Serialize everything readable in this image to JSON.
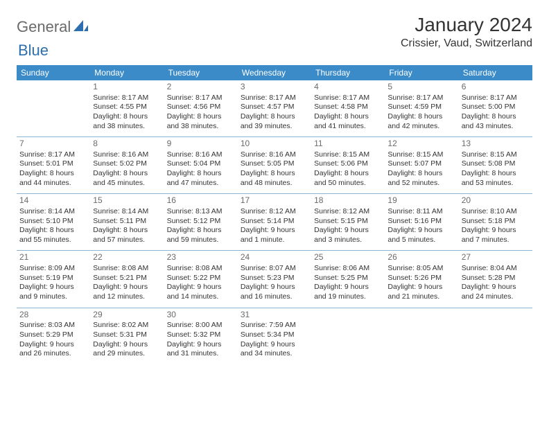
{
  "logo": {
    "word1": "General",
    "word2": "Blue"
  },
  "title": "January 2024",
  "subtitle": "Crissier, Vaud, Switzerland",
  "colors": {
    "header_bg": "#3b8bc9",
    "header_fg": "#ffffff",
    "row_border": "#8ab3d6",
    "text": "#333333",
    "logo_gray": "#6a6a6a",
    "logo_blue": "#2c6fb0"
  },
  "day_headers": [
    "Sunday",
    "Monday",
    "Tuesday",
    "Wednesday",
    "Thursday",
    "Friday",
    "Saturday"
  ],
  "weeks": [
    [
      null,
      {
        "n": "1",
        "sr": "8:17 AM",
        "ss": "4:55 PM",
        "dl": "8 hours and 38 minutes."
      },
      {
        "n": "2",
        "sr": "8:17 AM",
        "ss": "4:56 PM",
        "dl": "8 hours and 38 minutes."
      },
      {
        "n": "3",
        "sr": "8:17 AM",
        "ss": "4:57 PM",
        "dl": "8 hours and 39 minutes."
      },
      {
        "n": "4",
        "sr": "8:17 AM",
        "ss": "4:58 PM",
        "dl": "8 hours and 41 minutes."
      },
      {
        "n": "5",
        "sr": "8:17 AM",
        "ss": "4:59 PM",
        "dl": "8 hours and 42 minutes."
      },
      {
        "n": "6",
        "sr": "8:17 AM",
        "ss": "5:00 PM",
        "dl": "8 hours and 43 minutes."
      }
    ],
    [
      {
        "n": "7",
        "sr": "8:17 AM",
        "ss": "5:01 PM",
        "dl": "8 hours and 44 minutes."
      },
      {
        "n": "8",
        "sr": "8:16 AM",
        "ss": "5:02 PM",
        "dl": "8 hours and 45 minutes."
      },
      {
        "n": "9",
        "sr": "8:16 AM",
        "ss": "5:04 PM",
        "dl": "8 hours and 47 minutes."
      },
      {
        "n": "10",
        "sr": "8:16 AM",
        "ss": "5:05 PM",
        "dl": "8 hours and 48 minutes."
      },
      {
        "n": "11",
        "sr": "8:15 AM",
        "ss": "5:06 PM",
        "dl": "8 hours and 50 minutes."
      },
      {
        "n": "12",
        "sr": "8:15 AM",
        "ss": "5:07 PM",
        "dl": "8 hours and 52 minutes."
      },
      {
        "n": "13",
        "sr": "8:15 AM",
        "ss": "5:08 PM",
        "dl": "8 hours and 53 minutes."
      }
    ],
    [
      {
        "n": "14",
        "sr": "8:14 AM",
        "ss": "5:10 PM",
        "dl": "8 hours and 55 minutes."
      },
      {
        "n": "15",
        "sr": "8:14 AM",
        "ss": "5:11 PM",
        "dl": "8 hours and 57 minutes."
      },
      {
        "n": "16",
        "sr": "8:13 AM",
        "ss": "5:12 PM",
        "dl": "8 hours and 59 minutes."
      },
      {
        "n": "17",
        "sr": "8:12 AM",
        "ss": "5:14 PM",
        "dl": "9 hours and 1 minute."
      },
      {
        "n": "18",
        "sr": "8:12 AM",
        "ss": "5:15 PM",
        "dl": "9 hours and 3 minutes."
      },
      {
        "n": "19",
        "sr": "8:11 AM",
        "ss": "5:16 PM",
        "dl": "9 hours and 5 minutes."
      },
      {
        "n": "20",
        "sr": "8:10 AM",
        "ss": "5:18 PM",
        "dl": "9 hours and 7 minutes."
      }
    ],
    [
      {
        "n": "21",
        "sr": "8:09 AM",
        "ss": "5:19 PM",
        "dl": "9 hours and 9 minutes."
      },
      {
        "n": "22",
        "sr": "8:08 AM",
        "ss": "5:21 PM",
        "dl": "9 hours and 12 minutes."
      },
      {
        "n": "23",
        "sr": "8:08 AM",
        "ss": "5:22 PM",
        "dl": "9 hours and 14 minutes."
      },
      {
        "n": "24",
        "sr": "8:07 AM",
        "ss": "5:23 PM",
        "dl": "9 hours and 16 minutes."
      },
      {
        "n": "25",
        "sr": "8:06 AM",
        "ss": "5:25 PM",
        "dl": "9 hours and 19 minutes."
      },
      {
        "n": "26",
        "sr": "8:05 AM",
        "ss": "5:26 PM",
        "dl": "9 hours and 21 minutes."
      },
      {
        "n": "27",
        "sr": "8:04 AM",
        "ss": "5:28 PM",
        "dl": "9 hours and 24 minutes."
      }
    ],
    [
      {
        "n": "28",
        "sr": "8:03 AM",
        "ss": "5:29 PM",
        "dl": "9 hours and 26 minutes."
      },
      {
        "n": "29",
        "sr": "8:02 AM",
        "ss": "5:31 PM",
        "dl": "9 hours and 29 minutes."
      },
      {
        "n": "30",
        "sr": "8:00 AM",
        "ss": "5:32 PM",
        "dl": "9 hours and 31 minutes."
      },
      {
        "n": "31",
        "sr": "7:59 AM",
        "ss": "5:34 PM",
        "dl": "9 hours and 34 minutes."
      },
      null,
      null,
      null
    ]
  ]
}
